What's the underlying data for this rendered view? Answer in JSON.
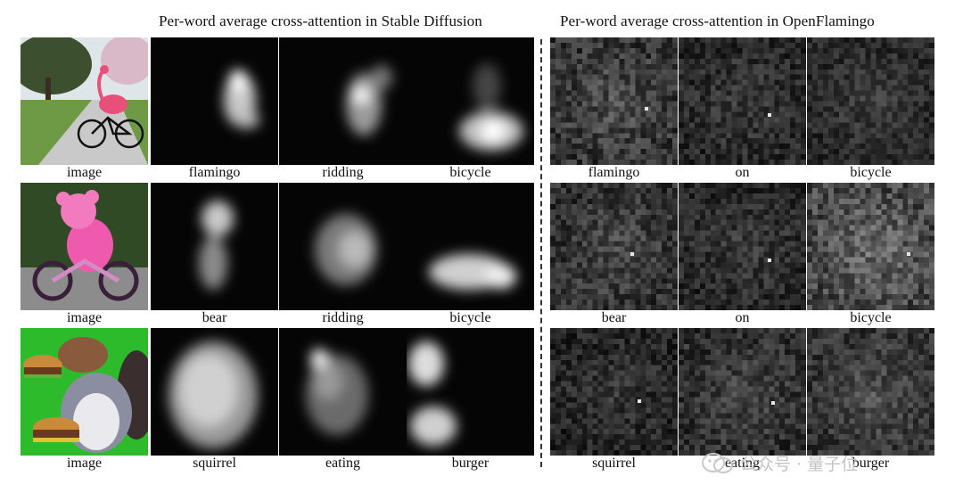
{
  "titles": {
    "sd": "Per-word average cross-attention in Stable Diffusion",
    "of": "Per-word average cross-attention in OpenFlamingo"
  },
  "rows": [
    {
      "image_caption": "image",
      "image_subject": "flamingo riding a bicycle on a park path",
      "sd_words": [
        "flamingo",
        "ridding",
        "bicycle"
      ],
      "of_words": [
        "flamingo",
        "on",
        "bicycle"
      ]
    },
    {
      "image_caption": "image",
      "image_subject": "pink teddy bear riding a bicycle",
      "sd_words": [
        "bear",
        "ridding",
        "bicycle"
      ],
      "of_words": [
        "bear",
        "on",
        "bicycle"
      ]
    },
    {
      "image_caption": "image",
      "image_subject": "squirrel eating a burger",
      "sd_words": [
        "squirrel",
        "eating",
        "burger"
      ],
      "of_words": [
        "squirrel",
        "eating",
        "burger"
      ]
    }
  ],
  "watermark": {
    "text": "公众号 · 量子位",
    "icon": "wechat-icon"
  }
}
